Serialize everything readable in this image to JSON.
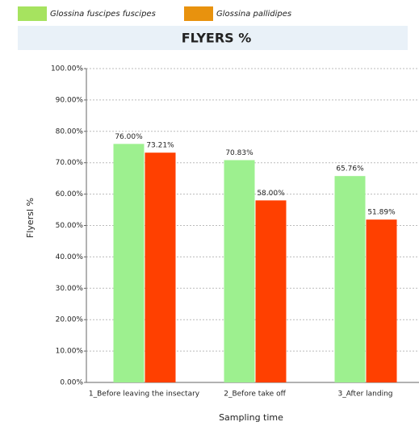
{
  "chart_data": {
    "type": "bar",
    "title": "FLYERS %",
    "x_label": "Sampling time",
    "y_label": "Flyersl %",
    "categories": [
      "1_Before leaving the insectary",
      "2_Before take off",
      "3_After landing"
    ],
    "series": [
      {
        "name": "Glossina fuscipes fuscipes",
        "color": "#9df08f",
        "legend_color": "#a6e35f",
        "values": [
          76.0,
          70.83,
          65.76
        ],
        "value_labels": [
          "76.00%",
          "70.83%",
          "65.76%"
        ]
      },
      {
        "name": "Glossina pallidipes",
        "color": "#ff4000",
        "legend_color": "#e8920e",
        "values": [
          73.21,
          58.0,
          51.89
        ],
        "value_labels": [
          "73.21%",
          "58.00%",
          "51.89%"
        ]
      }
    ],
    "ylim": [
      0,
      100
    ],
    "yticks": [
      {
        "value": 0,
        "label": "0.00%"
      },
      {
        "value": 10,
        "label": "10.00%"
      },
      {
        "value": 20,
        "label": "20.00%"
      },
      {
        "value": 30,
        "label": "30.00%"
      },
      {
        "value": 40,
        "label": "40.00%"
      },
      {
        "value": 50,
        "label": "50.00%"
      },
      {
        "value": 60,
        "label": "60.00%"
      },
      {
        "value": 70,
        "label": "70.00%"
      },
      {
        "value": 80,
        "label": "80.00%"
      },
      {
        "value": 90,
        "label": "90.00%"
      },
      {
        "value": 100,
        "label": "100.00%"
      }
    ],
    "grid": true
  }
}
